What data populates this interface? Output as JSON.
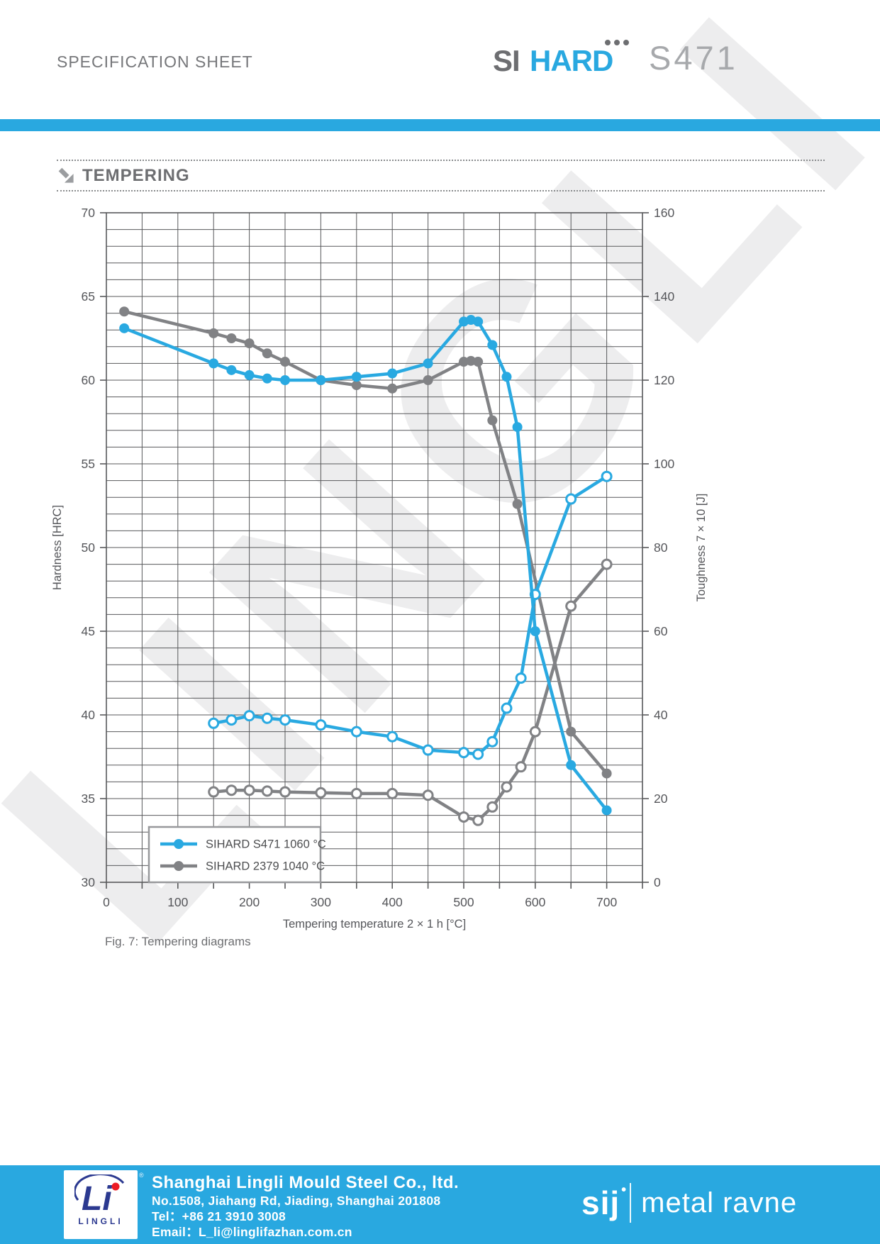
{
  "header": {
    "title": "SPECIFICATION SHEET",
    "brand_si": "SI",
    "brand_hard": "HARD",
    "brand_grade": "S471"
  },
  "section": {
    "title": "TEMPERING"
  },
  "caption": "Fig. 7: Tempering diagrams",
  "watermark": "LINGLI",
  "colors": {
    "accent_blue": "#29a8e0",
    "series_blue": "#29a9e1",
    "series_gray": "#818285",
    "grid": "#58595b",
    "axis_text": "#55565a",
    "legend_border": "#97989b",
    "navy": "#2b3990",
    "red": "#ed1c24"
  },
  "footer": {
    "company": "Shanghai Lingli Mould Steel Co., ltd.",
    "address": "No.1508, Jiahang Rd, Jiading, Shanghai 201808",
    "tel": "Tel：+86 21 3910 3008",
    "email": "Email：L_li@linglifazhan.com.cn",
    "logo_text": "LINGLI",
    "reg": "®",
    "sij": "sij",
    "sij_dot": "•",
    "brand_right": "metal ravne"
  },
  "chart_data": {
    "type": "line",
    "x_axis": {
      "label": "Tempering temperature 2 × 1 h [°C]",
      "min": 0,
      "max": 750,
      "grid_step": 50,
      "labeled_ticks": [
        0,
        100,
        200,
        300,
        400,
        500,
        600,
        700
      ]
    },
    "y_left": {
      "label": "Hardness [HRC]",
      "min": 30,
      "max": 70,
      "grid_step": 1,
      "labeled_ticks": [
        30,
        35,
        40,
        45,
        50,
        55,
        60,
        65,
        70
      ]
    },
    "y_right": {
      "label": "Toughness  7 × 10 [J]",
      "min": 0,
      "max": 160,
      "labeled_ticks": [
        0,
        20,
        40,
        60,
        80,
        100,
        120,
        140,
        160
      ]
    },
    "legend": [
      {
        "label": "SIHARD S471 1060 °C",
        "color": "#29a9e1"
      },
      {
        "label": "SIHARD 2379 1040 °C",
        "color": "#818285"
      }
    ],
    "legend_position": "inside-bottom-left",
    "grid": true,
    "series": [
      {
        "name": "SIHARD 2379 1040 °C toughness",
        "axis": "right",
        "color": "#818285",
        "marker": "open",
        "points": [
          [
            150,
            21.6
          ],
          [
            175,
            22.0
          ],
          [
            200,
            22.0
          ],
          [
            225,
            21.8
          ],
          [
            250,
            21.6
          ],
          [
            300,
            21.4
          ],
          [
            350,
            21.2
          ],
          [
            400,
            21.2
          ],
          [
            450,
            20.8
          ],
          [
            500,
            15.6
          ],
          [
            520,
            14.8
          ],
          [
            540,
            18.0
          ],
          [
            560,
            22.8
          ],
          [
            580,
            27.6
          ],
          [
            600,
            36.0
          ],
          [
            650,
            66.0
          ],
          [
            700,
            76.0
          ]
        ]
      },
      {
        "name": "SIHARD 2379 1040 °C hardness",
        "axis": "left",
        "color": "#818285",
        "marker": "filled",
        "points": [
          [
            25,
            64.1
          ],
          [
            150,
            62.8
          ],
          [
            175,
            62.5
          ],
          [
            200,
            62.2
          ],
          [
            225,
            61.6
          ],
          [
            250,
            61.1
          ],
          [
            300,
            60.0
          ],
          [
            350,
            59.7
          ],
          [
            400,
            59.5
          ],
          [
            450,
            60.0
          ],
          [
            500,
            61.1
          ],
          [
            510,
            61.15
          ],
          [
            520,
            61.1
          ],
          [
            540,
            57.6
          ],
          [
            575,
            52.6
          ],
          [
            650,
            39.0
          ],
          [
            700,
            36.5
          ]
        ]
      },
      {
        "name": "SIHARD S471 1060 °C toughness",
        "axis": "right",
        "color": "#29a9e1",
        "marker": "open",
        "points": [
          [
            150,
            38.0
          ],
          [
            175,
            38.8
          ],
          [
            200,
            39.8
          ],
          [
            225,
            39.2
          ],
          [
            250,
            38.8
          ],
          [
            300,
            37.6
          ],
          [
            350,
            36.0
          ],
          [
            400,
            34.8
          ],
          [
            450,
            31.6
          ],
          [
            500,
            31.0
          ],
          [
            520,
            30.6
          ],
          [
            540,
            33.6
          ],
          [
            560,
            41.6
          ],
          [
            580,
            48.8
          ],
          [
            600,
            68.8
          ],
          [
            650,
            91.6
          ],
          [
            700,
            97.0
          ]
        ]
      },
      {
        "name": "SIHARD S471 1060 °C hardness",
        "axis": "left",
        "color": "#29a9e1",
        "marker": "filled",
        "points": [
          [
            25,
            63.1
          ],
          [
            150,
            61.0
          ],
          [
            175,
            60.6
          ],
          [
            200,
            60.3
          ],
          [
            225,
            60.1
          ],
          [
            250,
            60.0
          ],
          [
            300,
            60.0
          ],
          [
            350,
            60.2
          ],
          [
            400,
            60.4
          ],
          [
            450,
            61.0
          ],
          [
            500,
            63.5
          ],
          [
            510,
            63.6
          ],
          [
            520,
            63.5
          ],
          [
            540,
            62.1
          ],
          [
            560,
            60.2
          ],
          [
            575,
            57.2
          ],
          [
            600,
            45.0
          ],
          [
            650,
            37.0
          ],
          [
            700,
            34.3
          ]
        ]
      }
    ]
  }
}
